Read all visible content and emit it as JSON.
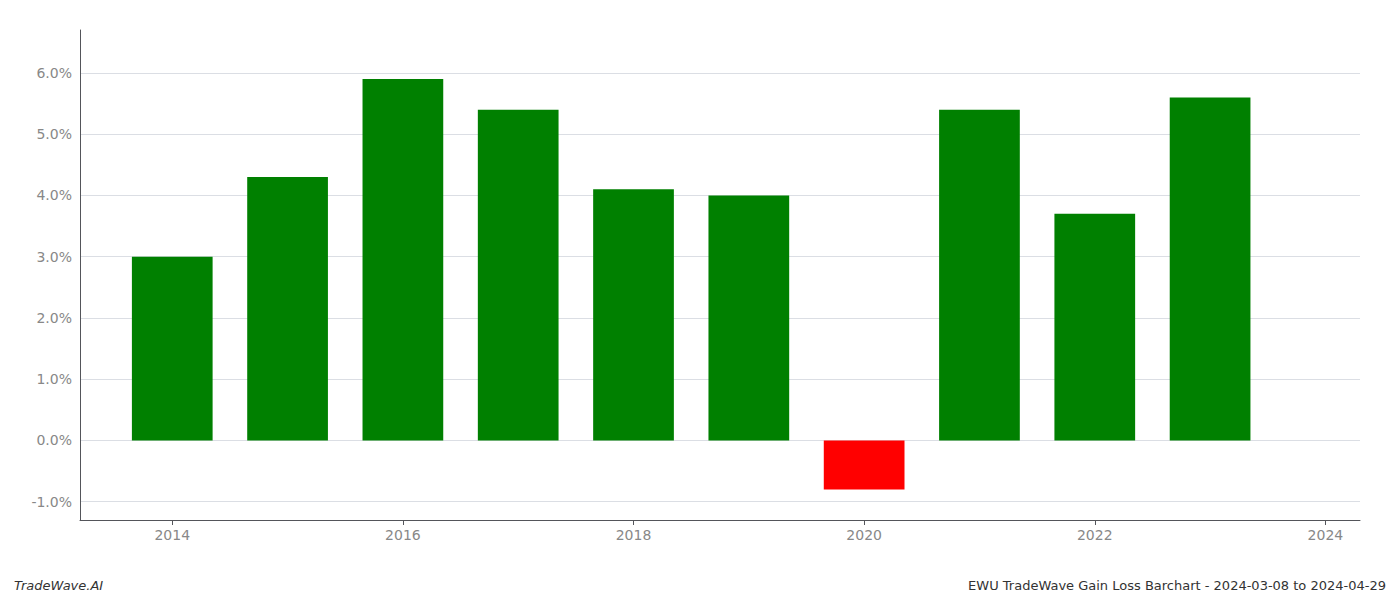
{
  "chart_data": {
    "type": "bar",
    "x": [
      2014,
      2015,
      2016,
      2017,
      2018,
      2019,
      2020,
      2021,
      2022,
      2023
    ],
    "values": [
      0.03,
      0.043,
      0.059,
      0.054,
      0.041,
      0.04,
      -0.008,
      0.054,
      0.037,
      0.056
    ],
    "colors": [
      "#008000",
      "#008000",
      "#008000",
      "#008000",
      "#008000",
      "#008000",
      "#ff0000",
      "#008000",
      "#008000",
      "#008000"
    ],
    "xlim": [
      2013.2,
      2024.3
    ],
    "xticks": [
      2014,
      2016,
      2018,
      2020,
      2022,
      2024
    ],
    "ylim": [
      -0.013,
      0.067
    ],
    "yticks": [
      {
        "value": -0.01,
        "label": "-1.0%"
      },
      {
        "value": 0.0,
        "label": "0.0%"
      },
      {
        "value": 0.01,
        "label": "1.0%"
      },
      {
        "value": 0.02,
        "label": "2.0%"
      },
      {
        "value": 0.03,
        "label": "3.0%"
      },
      {
        "value": 0.04,
        "label": "4.0%"
      },
      {
        "value": 0.05,
        "label": "5.0%"
      },
      {
        "value": 0.06,
        "label": "6.0%"
      }
    ],
    "grid": true,
    "annotations": [
      "TradeWave.AI",
      "EWU TradeWave Gain Loss Barchart - 2024-03-08 to 2024-04-29"
    ]
  }
}
